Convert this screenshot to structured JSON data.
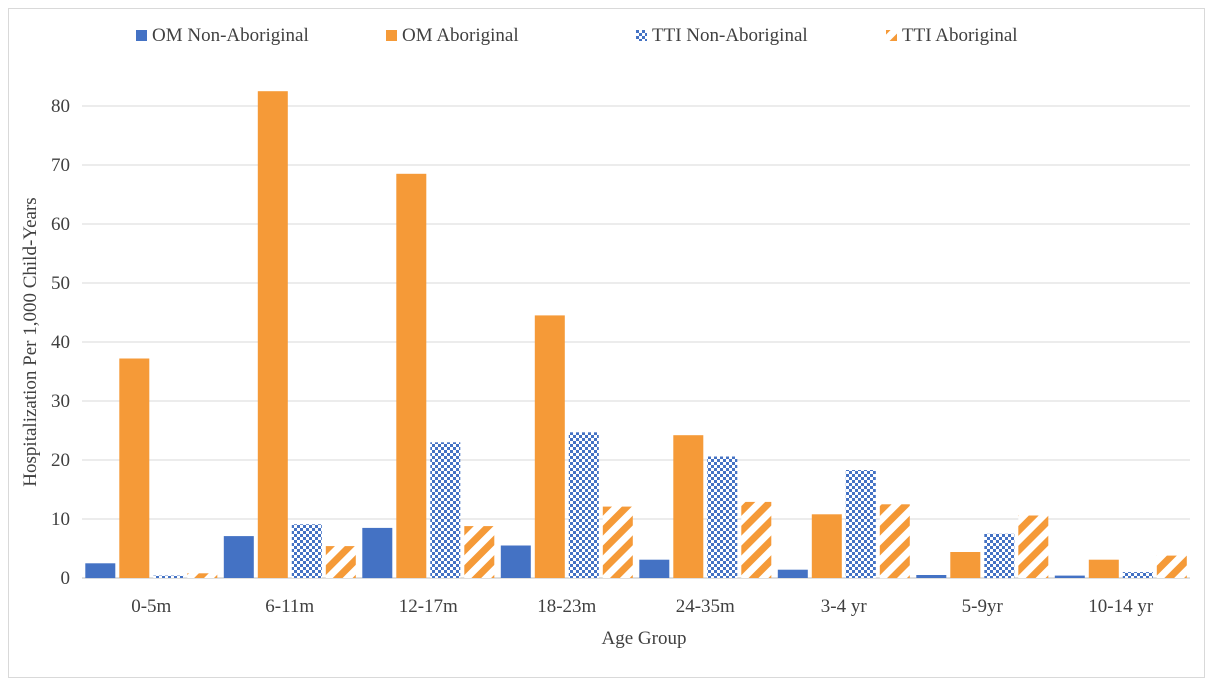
{
  "chart_data": {
    "type": "bar",
    "title": "",
    "xlabel": "Age Group",
    "ylabel": "Hospitalization Per 1,000 Child-Years",
    "ylim": [
      0,
      85
    ],
    "yticks": [
      0,
      10,
      20,
      30,
      40,
      50,
      60,
      70,
      80
    ],
    "grid": true,
    "legend_position": "top",
    "categories": [
      "0-5m",
      "6-11m",
      "12-17m",
      "18-23m",
      "24-35m",
      "3-4 yr",
      "5-9yr",
      "10-14 yr"
    ],
    "series": [
      {
        "name": "OM Non-Aboriginal",
        "color": "#4472c4",
        "fill_style": "solid",
        "values": [
          2.5,
          7.1,
          8.5,
          5.5,
          3.1,
          1.4,
          0.5,
          0.4
        ]
      },
      {
        "name": "OM Aboriginal",
        "color": "#f59a38",
        "fill_style": "solid",
        "values": [
          37.2,
          82.5,
          68.5,
          44.5,
          24.2,
          10.8,
          4.4,
          3.1
        ]
      },
      {
        "name": "TTI Non-Aboriginal",
        "color": "#4472c4",
        "fill_style": "checker",
        "values": [
          0.4,
          9.1,
          23.0,
          24.7,
          20.6,
          18.3,
          7.5,
          1.0
        ]
      },
      {
        "name": "TTI Aboriginal",
        "color": "#f59a38",
        "fill_style": "diagonal",
        "values": [
          0.8,
          5.4,
          8.8,
          12.1,
          12.9,
          12.5,
          10.6,
          3.8
        ]
      }
    ]
  }
}
